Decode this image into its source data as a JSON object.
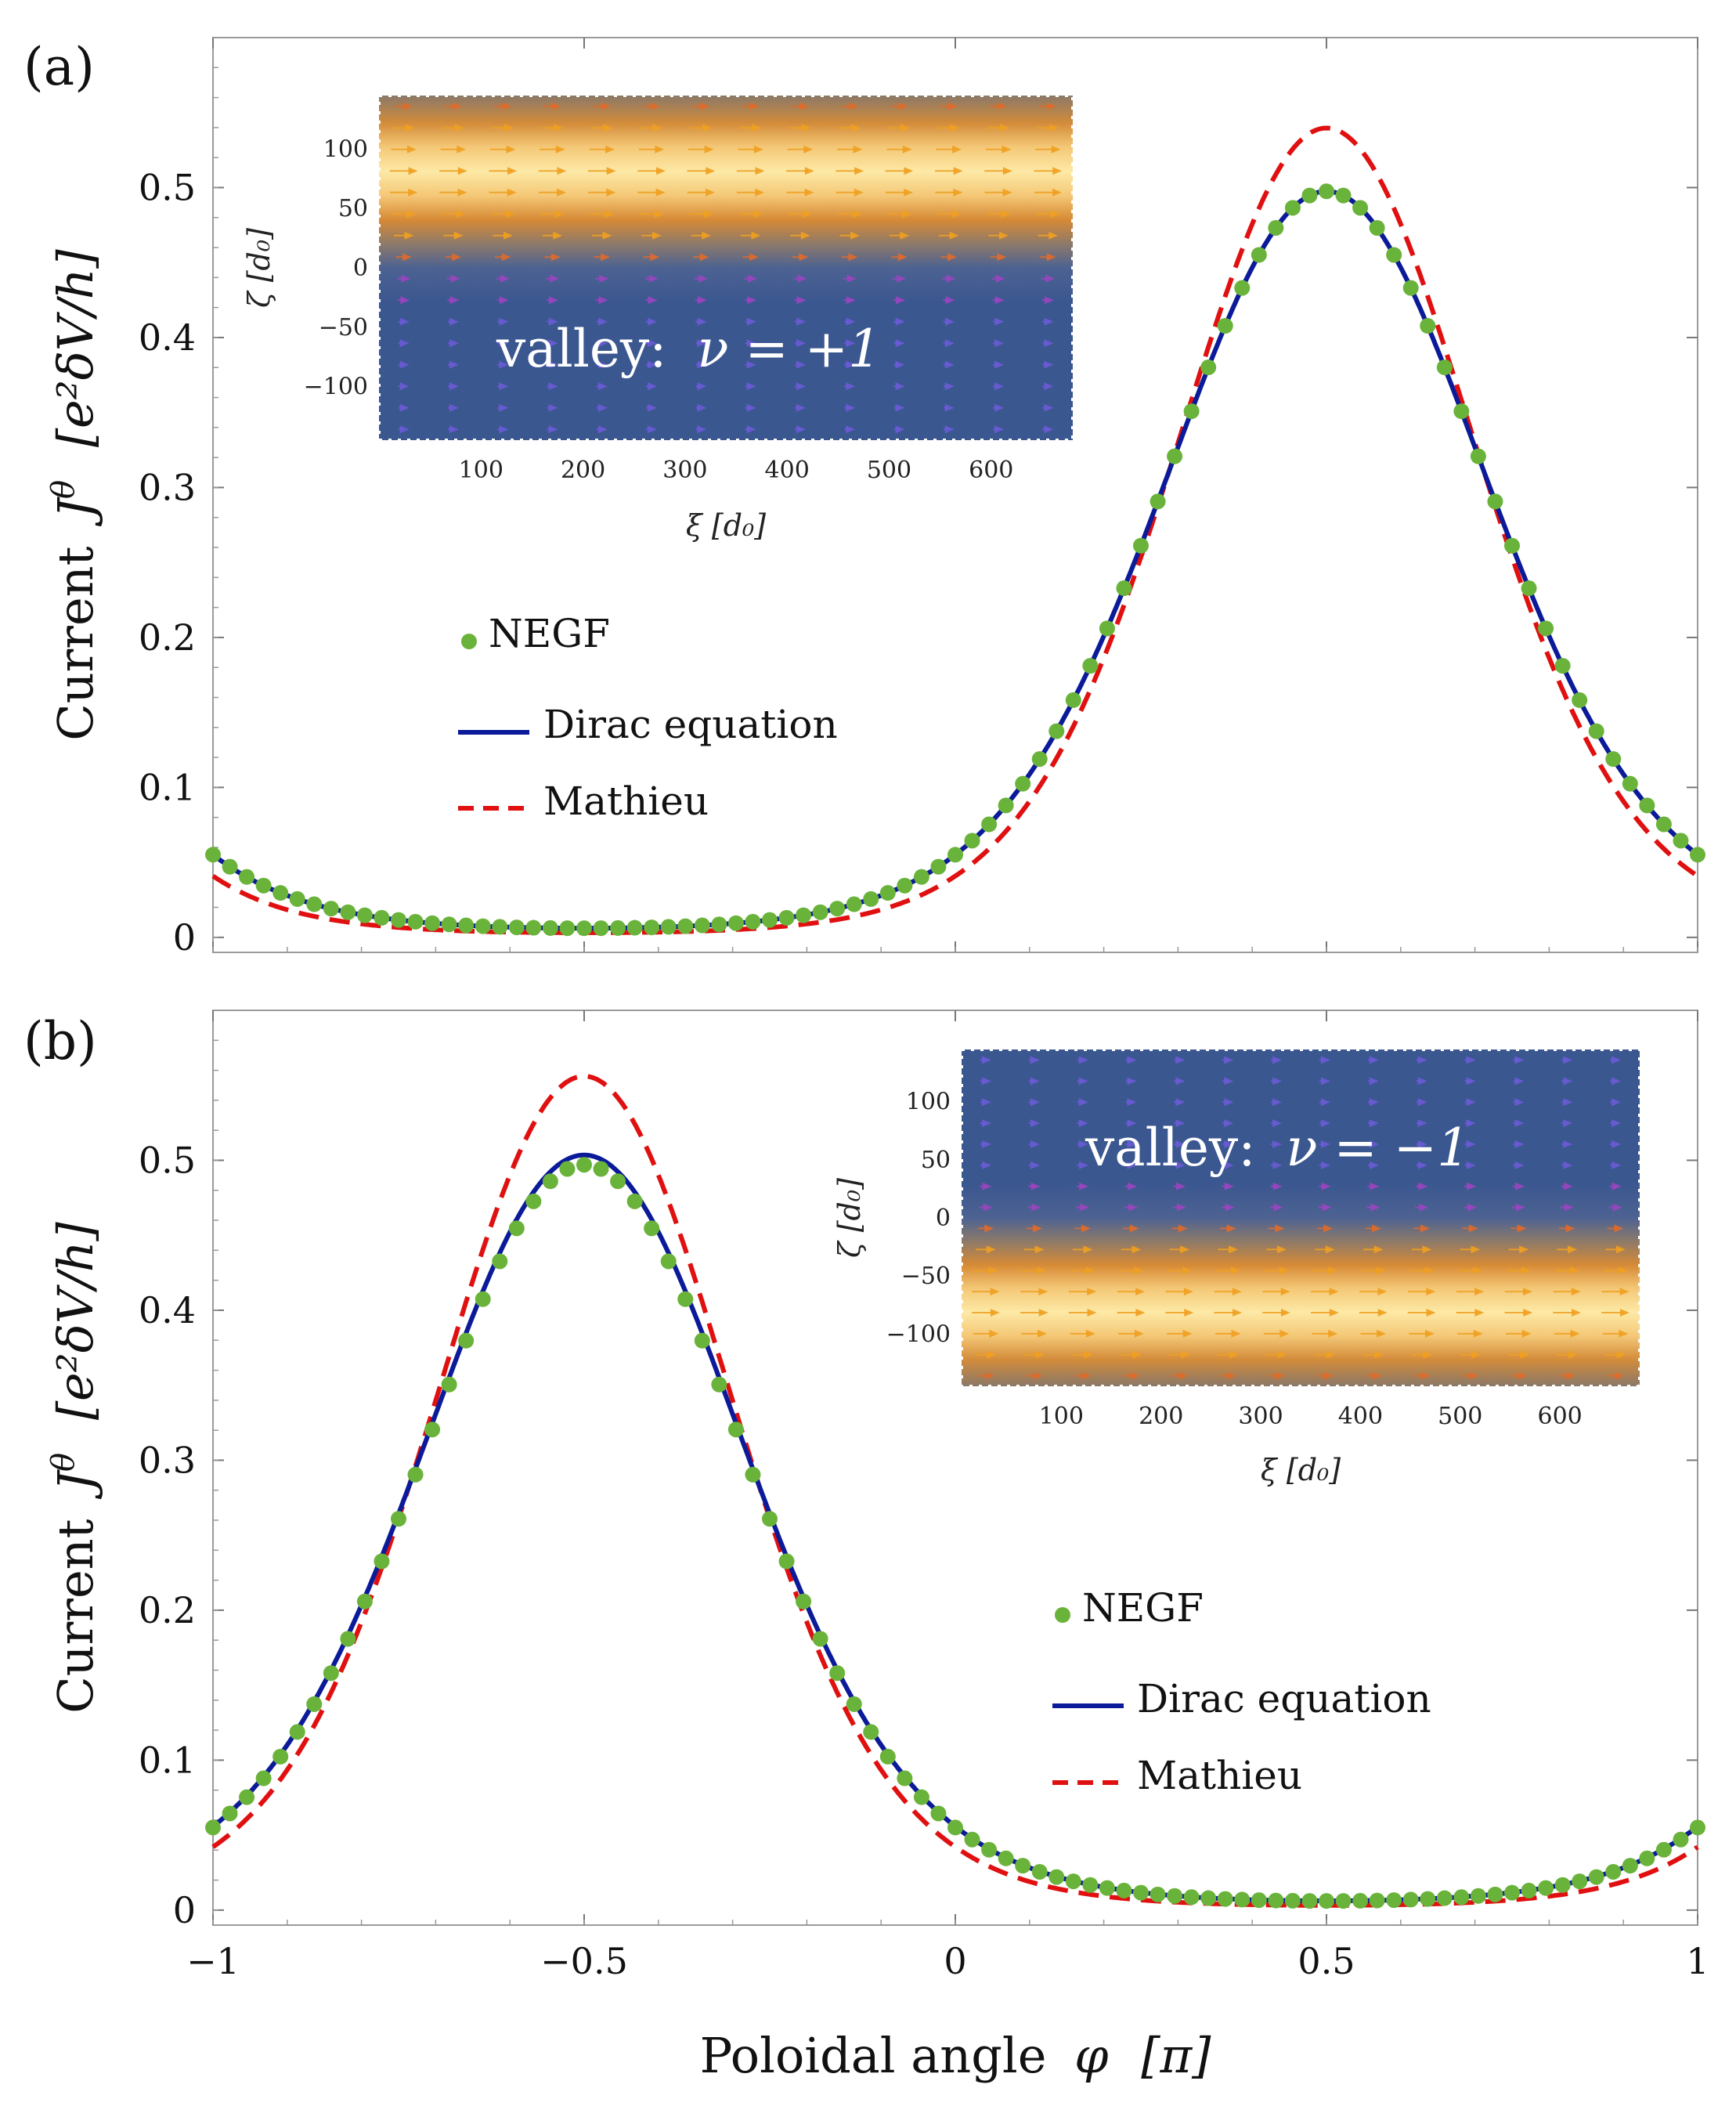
{
  "figure": {
    "xlabel_text": "Poloidal angle",
    "xlabel_symbol": "φ",
    "xlabel_unit": "[π]",
    "ylabel_text": "Current",
    "ylabel_symbol": "J",
    "ylabel_sup": "θ",
    "ylabel_unit": "[e²δV/h]"
  },
  "colors": {
    "negf": "#6ab33a",
    "dirac": "#0b1a99",
    "mathieu": "#e01010",
    "inset_blue": "#3b5790",
    "inset_gold": "#fde8a0",
    "inset_orange": "#d7872e"
  },
  "legend": {
    "negf": "NEGF",
    "dirac": "Dirac equation",
    "mathieu": "Mathieu"
  },
  "insets": [
    {
      "valley_label": "valley:",
      "valley_symbol": "ν = +1",
      "xlabel": "ξ  [d₀]",
      "ylabel": "ζ  [d₀]",
      "xticks": [
        100,
        200,
        300,
        400,
        500,
        600
      ],
      "yticks": [
        100,
        50,
        0,
        -50,
        -100
      ],
      "xrange": [
        0,
        680
      ],
      "yrange": [
        -145,
        145
      ],
      "current_band_center": 75,
      "current_band_width": 60
    },
    {
      "valley_label": "valley:",
      "valley_symbol": "ν = −1",
      "xlabel": "ξ  [d₀]",
      "ylabel": "ζ  [d₀]",
      "xticks": [
        100,
        200,
        300,
        400,
        500,
        600
      ],
      "yticks": [
        100,
        50,
        0,
        -50,
        -100
      ],
      "xrange": [
        0,
        680
      ],
      "yrange": [
        -145,
        145
      ],
      "current_band_center": -75,
      "current_band_width": 60
    }
  ],
  "chart_data": [
    {
      "type": "line",
      "panel_label": "(a)",
      "xlim": [
        -1,
        1
      ],
      "ylim": [
        -0.01,
        0.6
      ],
      "xticks": [
        -1,
        -0.5,
        0,
        0.5,
        1
      ],
      "yticks": [
        0,
        0.1,
        0.2,
        0.3,
        0.4,
        0.5
      ],
      "ytick_labels": [
        "0",
        "0.1",
        "0.2",
        "0.3",
        "0.4",
        "0.5"
      ],
      "series": [
        {
          "name": "NEGF",
          "kind": "scatter",
          "peak_x": 0.5,
          "amplitude": 0.4975,
          "kappa": 2.2,
          "n_points": 89
        },
        {
          "name": "Dirac equation",
          "kind": "solid",
          "peak_x": 0.5,
          "amplitude": 0.4975,
          "kappa": 2.2
        },
        {
          "name": "Mathieu",
          "kind": "dashed",
          "peak_x": 0.5,
          "amplitude": 0.5397,
          "kappa": 2.58
        }
      ]
    },
    {
      "type": "line",
      "panel_label": "(b)",
      "xlim": [
        -1,
        1
      ],
      "ylim": [
        -0.01,
        0.6
      ],
      "xticks": [
        -1,
        -0.5,
        0,
        0.5,
        1
      ],
      "xtick_labels": [
        "−1",
        "−0.5",
        "0",
        "0.5",
        "1"
      ],
      "yticks": [
        0,
        0.1,
        0.2,
        0.3,
        0.4,
        0.5
      ],
      "ytick_labels": [
        "0",
        "0.1",
        "0.2",
        "0.3",
        "0.4",
        "0.5"
      ],
      "series": [
        {
          "name": "NEGF",
          "kind": "scatter",
          "peak_x": -0.5,
          "amplitude": 0.497,
          "kappa": 2.2,
          "n_points": 89
        },
        {
          "name": "Dirac equation",
          "kind": "solid",
          "peak_x": -0.5,
          "amplitude": 0.5035,
          "kappa": 2.2
        },
        {
          "name": "Mathieu",
          "kind": "dashed",
          "peak_x": -0.5,
          "amplitude": 0.5561,
          "kappa": 2.58
        }
      ]
    }
  ]
}
